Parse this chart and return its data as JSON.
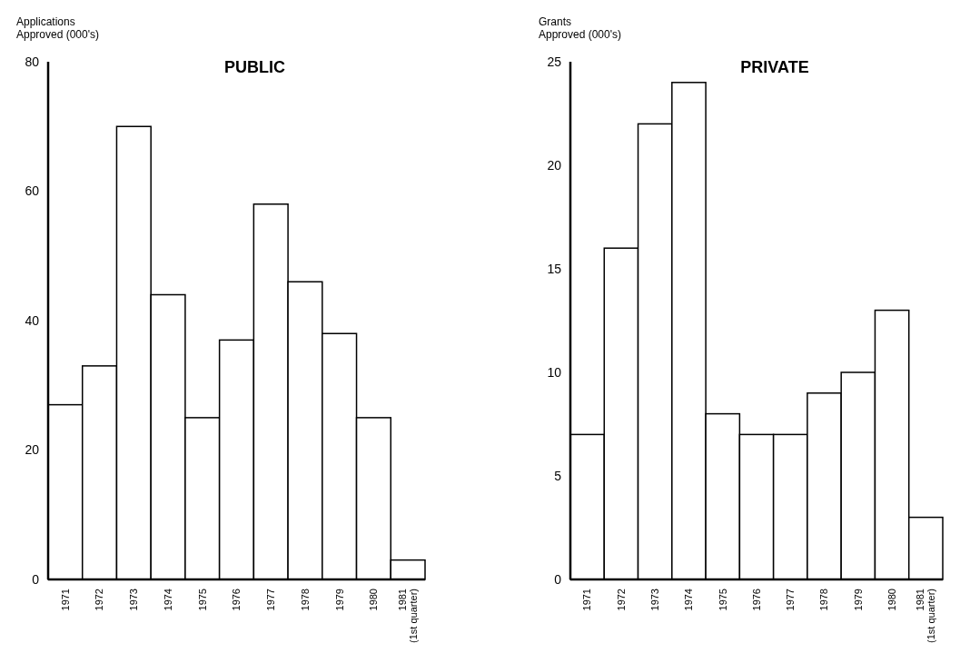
{
  "chart_data": [
    {
      "type": "bar",
      "title": "PUBLIC",
      "ylabel": "Applications Approved (000's)",
      "categories": [
        "1971",
        "1972",
        "1973",
        "1974",
        "1975",
        "1976",
        "1977",
        "1978",
        "1979",
        "1980",
        "1981 (1st quarter)"
      ],
      "values": [
        27,
        33,
        70,
        44,
        25,
        37,
        58,
        46,
        38,
        25,
        3
      ],
      "color": "#ffffff",
      "ylim": [
        0,
        80
      ],
      "yticks": [
        0,
        20,
        40,
        60,
        80
      ],
      "grid": false
    },
    {
      "type": "bar",
      "title": "PRIVATE",
      "ylabel": "Grants Approved (000's)",
      "categories": [
        "1971",
        "1972",
        "1973",
        "1974",
        "1975",
        "1976",
        "1977",
        "1978",
        "1979",
        "1980",
        "1981 (1st quarter)"
      ],
      "values": [
        7,
        16,
        22,
        24,
        8,
        7,
        7,
        9,
        10,
        13,
        3
      ],
      "color": "#ffffff",
      "ylim": [
        0,
        25
      ],
      "yticks": [
        0,
        5,
        10,
        15,
        20,
        25
      ],
      "grid": false
    }
  ]
}
